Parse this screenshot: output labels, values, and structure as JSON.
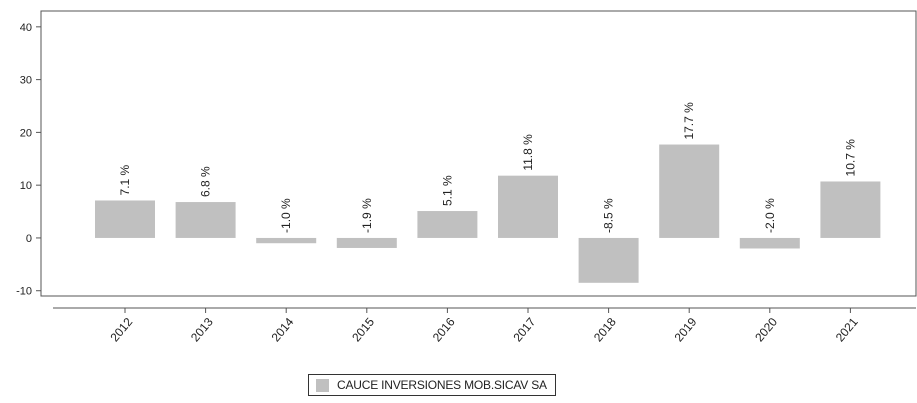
{
  "chart_data": {
    "type": "bar",
    "categories": [
      "2012",
      "2013",
      "2014",
      "2015",
      "2016",
      "2017",
      "2018",
      "2019",
      "2020",
      "2021"
    ],
    "series": [
      {
        "name": "CAUCE INVERSIONES MOB.SICAV SA",
        "values": [
          7.1,
          6.8,
          -1.0,
          -1.9,
          5.1,
          11.8,
          -8.5,
          17.7,
          -2.0,
          10.7
        ],
        "labels": [
          "7.1 %",
          "6.8 %",
          "-1.0 %",
          "-1.9 %",
          "5.1 %",
          "11.8 %",
          "-8.5 %",
          "17.7 %",
          "-2.0 %",
          "10.7 %"
        ]
      }
    ],
    "yticks": [
      -10,
      0,
      10,
      20,
      30,
      40
    ],
    "ylim": [
      -11,
      43
    ],
    "grid": false,
    "legend_position": "bottom-center",
    "colors": {
      "bar": "#c0c0c0",
      "axis": "#555555",
      "text": "#222222"
    }
  }
}
